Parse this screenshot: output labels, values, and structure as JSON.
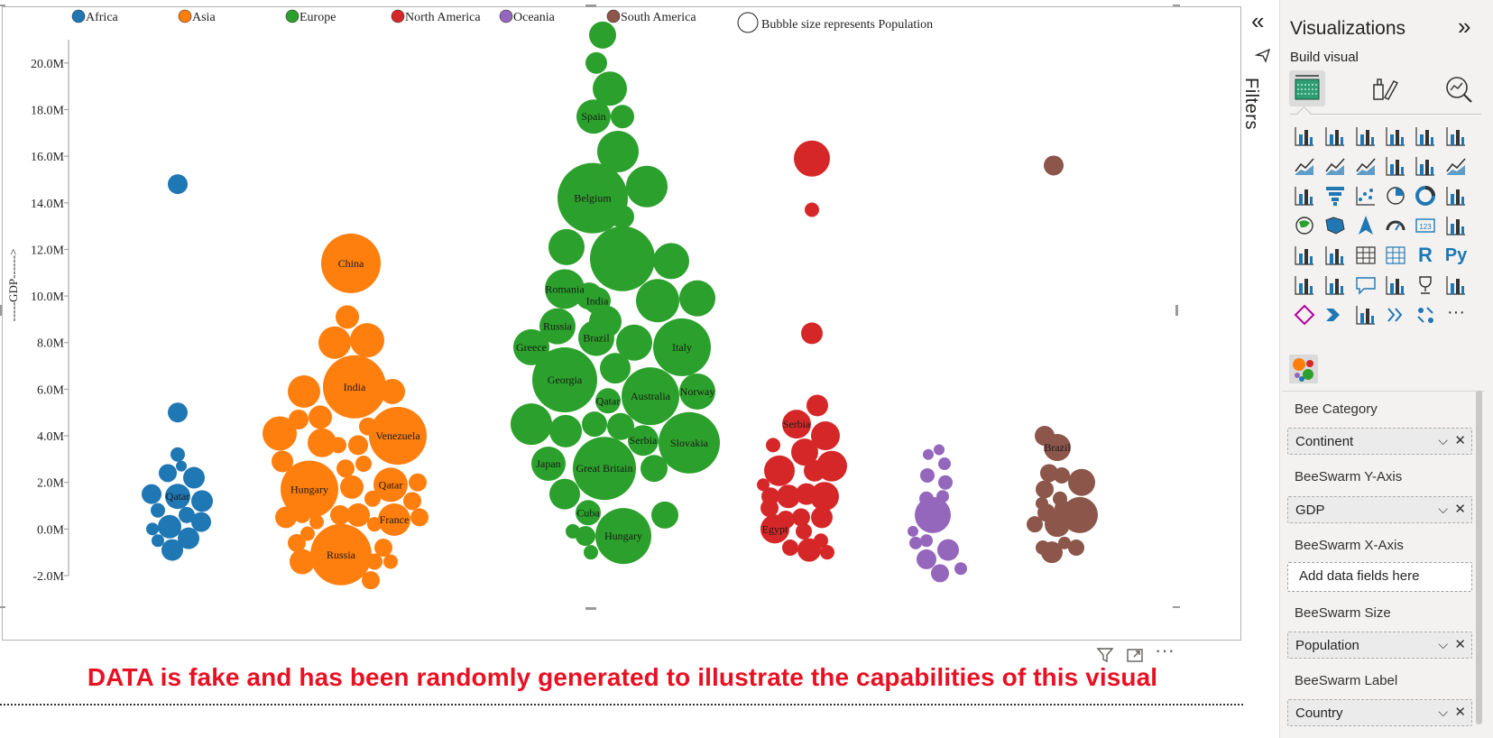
{
  "chart_data": {
    "type": "scatter",
    "subtype": "beeswarm",
    "legend": {
      "position": "top",
      "entries": [
        {
          "name": "Africa",
          "color": "#1f77b4"
        },
        {
          "name": "Asia",
          "color": "#ff7f0e"
        },
        {
          "name": "Europe",
          "color": "#2ca02c"
        },
        {
          "name": "North America",
          "color": "#d62728"
        },
        {
          "name": "Oceania",
          "color": "#9467bd"
        },
        {
          "name": "South America",
          "color": "#8c564b"
        }
      ],
      "size_note": "Bubble size represents Population"
    },
    "ylabel": "-----GDP------>",
    "ylim": [
      -2.0,
      21.0
    ],
    "yticks": [
      -2.0,
      0.0,
      2.0,
      4.0,
      6.0,
      8.0,
      10.0,
      12.0,
      14.0,
      16.0,
      18.0,
      20.0
    ],
    "ytick_labels": [
      "-2.0M",
      "0.0M",
      "2.0M",
      "4.0M",
      "6.0M",
      "8.0M",
      "10.0M",
      "12.0M",
      "14.0M",
      "16.0M",
      "18.0M",
      "20.0M"
    ],
    "series": [
      {
        "name": "Africa",
        "color": "#1f77b4",
        "points": [
          {
            "dx": 0,
            "y": 14.8,
            "r": 11
          },
          {
            "dx": 0,
            "y": 5.0,
            "r": 11
          },
          {
            "dx": 0,
            "y": 3.2,
            "r": 8
          },
          {
            "dx": -11,
            "y": 2.4,
            "r": 10
          },
          {
            "dx": 4,
            "y": 2.7,
            "r": 6
          },
          {
            "dx": 18,
            "y": 2.2,
            "r": 12
          },
          {
            "dx": -29,
            "y": 1.5,
            "r": 11
          },
          {
            "dx": 0,
            "y": 1.4,
            "r": 14,
            "label": "Qatar"
          },
          {
            "dx": 27,
            "y": 1.2,
            "r": 12
          },
          {
            "dx": -22,
            "y": 0.8,
            "r": 8
          },
          {
            "dx": -9,
            "y": 0.1,
            "r": 13
          },
          {
            "dx": 10,
            "y": 0.6,
            "r": 9
          },
          {
            "dx": 26,
            "y": 0.3,
            "r": 11
          },
          {
            "dx": -28,
            "y": 0.0,
            "r": 7
          },
          {
            "dx": 12,
            "y": -0.4,
            "r": 12
          },
          {
            "dx": -22,
            "y": -0.5,
            "r": 7
          },
          {
            "dx": -6,
            "y": -0.9,
            "r": 12
          }
        ]
      },
      {
        "name": "Asia",
        "color": "#ff7f0e",
        "points": [
          {
            "dx": -4,
            "y": 11.4,
            "r": 33,
            "label": "China"
          },
          {
            "dx": -8,
            "y": 9.1,
            "r": 13
          },
          {
            "dx": -22,
            "y": 8.0,
            "r": 18
          },
          {
            "dx": 14,
            "y": 8.1,
            "r": 19
          },
          {
            "dx": 0,
            "y": 6.1,
            "r": 35,
            "label": "India"
          },
          {
            "dx": -56,
            "y": 5.9,
            "r": 18
          },
          {
            "dx": 42,
            "y": 5.9,
            "r": 14
          },
          {
            "dx": -62,
            "y": 4.7,
            "r": 11
          },
          {
            "dx": -38,
            "y": 4.8,
            "r": 13
          },
          {
            "dx": -36,
            "y": 3.7,
            "r": 16
          },
          {
            "dx": 15,
            "y": 4.4,
            "r": 10
          },
          {
            "dx": -83,
            "y": 4.1,
            "r": 19
          },
          {
            "dx": -18,
            "y": 3.6,
            "r": 9
          },
          {
            "dx": 4,
            "y": 3.6,
            "r": 11
          },
          {
            "dx": 48,
            "y": 4.0,
            "r": 32,
            "label": "Venezuela"
          },
          {
            "dx": -80,
            "y": 2.9,
            "r": 12
          },
          {
            "dx": -50,
            "y": 1.7,
            "r": 32,
            "label": "Hungary"
          },
          {
            "dx": -10,
            "y": 2.6,
            "r": 10
          },
          {
            "dx": 10,
            "y": 2.8,
            "r": 9
          },
          {
            "dx": 40,
            "y": 1.9,
            "r": 19,
            "label": "Qatar"
          },
          {
            "dx": -3,
            "y": 1.8,
            "r": 13
          },
          {
            "dx": 70,
            "y": 2.0,
            "r": 10
          },
          {
            "dx": 64,
            "y": 1.2,
            "r": 10
          },
          {
            "dx": -16,
            "y": 0.6,
            "r": 11
          },
          {
            "dx": 4,
            "y": 0.6,
            "r": 13
          },
          {
            "dx": 20,
            "y": 1.3,
            "r": 9
          },
          {
            "dx": 44,
            "y": 0.4,
            "r": 18,
            "label": "France"
          },
          {
            "dx": -76,
            "y": 0.5,
            "r": 12
          },
          {
            "dx": -58,
            "y": 0.6,
            "r": 9
          },
          {
            "dx": 72,
            "y": 0.5,
            "r": 10
          },
          {
            "dx": -52,
            "y": -0.2,
            "r": 8
          },
          {
            "dx": -42,
            "y": 0.3,
            "r": 8
          },
          {
            "dx": 22,
            "y": 0.2,
            "r": 8
          },
          {
            "dx": -64,
            "y": -0.6,
            "r": 10
          },
          {
            "dx": -15,
            "y": -1.1,
            "r": 34,
            "label": "Russia"
          },
          {
            "dx": 32,
            "y": -0.8,
            "r": 10
          },
          {
            "dx": 22,
            "y": -1.4,
            "r": 9
          },
          {
            "dx": -58,
            "y": -1.4,
            "r": 14
          },
          {
            "dx": 18,
            "y": -2.2,
            "r": 10
          },
          {
            "dx": 40,
            "y": -1.4,
            "r": 8
          }
        ]
      },
      {
        "name": "Europe",
        "color": "#2ca02c",
        "points": [
          {
            "dx": 13,
            "y": 21.2,
            "r": 15
          },
          {
            "dx": 6,
            "y": 20.0,
            "r": 12
          },
          {
            "dx": 21,
            "y": 18.9,
            "r": 19
          },
          {
            "dx": 3,
            "y": 17.7,
            "r": 19,
            "label": "Spain"
          },
          {
            "dx": 35,
            "y": 17.7,
            "r": 13
          },
          {
            "dx": 30,
            "y": 16.2,
            "r": 23
          },
          {
            "dx": 2,
            "y": 14.2,
            "r": 39,
            "label": "Belgium"
          },
          {
            "dx": 62,
            "y": 14.7,
            "r": 23
          },
          {
            "dx": 35,
            "y": 13.4,
            "r": 13
          },
          {
            "dx": -27,
            "y": 12.1,
            "r": 20
          },
          {
            "dx": 35,
            "y": 11.6,
            "r": 36
          },
          {
            "dx": 89,
            "y": 11.5,
            "r": 20
          },
          {
            "dx": -29,
            "y": 10.3,
            "r": 22,
            "label": "Romania"
          },
          {
            "dx": -2,
            "y": 10.0,
            "r": 15
          },
          {
            "dx": 16,
            "y": 8.9,
            "r": 18
          },
          {
            "dx": 7,
            "y": 9.8,
            "r": 15,
            "label": "India"
          },
          {
            "dx": 74,
            "y": 9.8,
            "r": 24
          },
          {
            "dx": 118,
            "y": 9.9,
            "r": 20
          },
          {
            "dx": -37,
            "y": 8.7,
            "r": 20,
            "label": "Russia"
          },
          {
            "dx": -66,
            "y": 7.8,
            "r": 20,
            "label": "Greece"
          },
          {
            "dx": 6,
            "y": 8.2,
            "r": 20,
            "label": "Brazil"
          },
          {
            "dx": 48,
            "y": 8.0,
            "r": 20
          },
          {
            "dx": 101,
            "y": 7.8,
            "r": 32,
            "label": "Italy"
          },
          {
            "dx": -29,
            "y": 6.4,
            "r": 36,
            "label": "Georgia"
          },
          {
            "dx": 27,
            "y": 6.9,
            "r": 17
          },
          {
            "dx": 65,
            "y": 5.8,
            "r": 16
          },
          {
            "dx": 19,
            "y": 5.5,
            "r": 14,
            "label": "Qatar"
          },
          {
            "dx": 66,
            "y": 5.7,
            "r": 32,
            "label": "Australia"
          },
          {
            "dx": 118,
            "y": 5.9,
            "r": 20,
            "label": "Norway"
          },
          {
            "dx": -66,
            "y": 4.5,
            "r": 23
          },
          {
            "dx": -28,
            "y": 4.2,
            "r": 18
          },
          {
            "dx": 4,
            "y": 4.5,
            "r": 14
          },
          {
            "dx": 33,
            "y": 4.4,
            "r": 15
          },
          {
            "dx": 58,
            "y": 3.8,
            "r": 17,
            "label": "Serbia"
          },
          {
            "dx": 109,
            "y": 3.7,
            "r": 34,
            "label": "Slovakia"
          },
          {
            "dx": -47,
            "y": 2.8,
            "r": 19,
            "label": "Japan"
          },
          {
            "dx": 15,
            "y": 2.6,
            "r": 35,
            "label": "Great Britain"
          },
          {
            "dx": 70,
            "y": 2.6,
            "r": 15
          },
          {
            "dx": -29,
            "y": 1.5,
            "r": 17
          },
          {
            "dx": -3,
            "y": 0.7,
            "r": 14,
            "label": "Cuba"
          },
          {
            "dx": 82,
            "y": 0.6,
            "r": 15
          },
          {
            "dx": -20,
            "y": -0.1,
            "r": 8
          },
          {
            "dx": -6,
            "y": -0.3,
            "r": 11
          },
          {
            "dx": 36,
            "y": -0.3,
            "r": 31,
            "label": "Hungary"
          },
          {
            "dx": 0,
            "y": -1.0,
            "r": 8
          }
        ]
      },
      {
        "name": "North America",
        "color": "#d62728",
        "points": [
          {
            "dx": 0,
            "y": 15.9,
            "r": 20
          },
          {
            "dx": 0,
            "y": 13.7,
            "r": 8
          },
          {
            "dx": 0,
            "y": 8.4,
            "r": 12
          },
          {
            "dx": 6,
            "y": 5.3,
            "r": 12
          },
          {
            "dx": -17,
            "y": 4.5,
            "r": 16,
            "label": "Serbia"
          },
          {
            "dx": 15,
            "y": 4.0,
            "r": 16
          },
          {
            "dx": -43,
            "y": 3.6,
            "r": 8
          },
          {
            "dx": -8,
            "y": 3.3,
            "r": 15
          },
          {
            "dx": -36,
            "y": 2.5,
            "r": 17
          },
          {
            "dx": 22,
            "y": 2.7,
            "r": 17
          },
          {
            "dx": 3,
            "y": 2.5,
            "r": 12
          },
          {
            "dx": -54,
            "y": 1.9,
            "r": 7
          },
          {
            "dx": -46,
            "y": 1.4,
            "r": 10
          },
          {
            "dx": -26,
            "y": 1.4,
            "r": 13
          },
          {
            "dx": -6,
            "y": 1.5,
            "r": 12
          },
          {
            "dx": 14,
            "y": 1.4,
            "r": 16
          },
          {
            "dx": -47,
            "y": 0.9,
            "r": 10
          },
          {
            "dx": -29,
            "y": 0.4,
            "r": 10
          },
          {
            "dx": -12,
            "y": 0.5,
            "r": 10
          },
          {
            "dx": 11,
            "y": 0.5,
            "r": 12
          },
          {
            "dx": -41,
            "y": 0.0,
            "r": 16,
            "label": "Egypt"
          },
          {
            "dx": -9,
            "y": -0.1,
            "r": 9
          },
          {
            "dx": 10,
            "y": -0.5,
            "r": 8
          },
          {
            "dx": -24,
            "y": -0.8,
            "r": 9
          },
          {
            "dx": -3,
            "y": -0.9,
            "r": 13
          },
          {
            "dx": 17,
            "y": -1.0,
            "r": 8
          }
        ]
      },
      {
        "name": "Oceania",
        "color": "#9467bd",
        "points": [
          {
            "dx": -6,
            "y": 3.2,
            "r": 6
          },
          {
            "dx": 6,
            "y": 3.4,
            "r": 6
          },
          {
            "dx": 12,
            "y": 2.8,
            "r": 7
          },
          {
            "dx": -7,
            "y": 2.3,
            "r": 8
          },
          {
            "dx": 13,
            "y": 2.0,
            "r": 8
          },
          {
            "dx": -8,
            "y": 1.3,
            "r": 8
          },
          {
            "dx": 10,
            "y": 1.4,
            "r": 7
          },
          {
            "dx": -1,
            "y": 0.6,
            "r": 20
          },
          {
            "dx": -23,
            "y": -0.1,
            "r": 6
          },
          {
            "dx": -20,
            "y": -0.6,
            "r": 7
          },
          {
            "dx": -8,
            "y": -0.5,
            "r": 7
          },
          {
            "dx": 16,
            "y": -0.9,
            "r": 12
          },
          {
            "dx": -8,
            "y": -1.3,
            "r": 11
          },
          {
            "dx": 30,
            "y": -1.7,
            "r": 7
          },
          {
            "dx": 7,
            "y": -1.9,
            "r": 10
          }
        ]
      },
      {
        "name": "South America",
        "color": "#8c564b",
        "points": [
          {
            "dx": 0,
            "y": 15.6,
            "r": 11
          },
          {
            "dx": -10,
            "y": 4.0,
            "r": 11
          },
          {
            "dx": 4,
            "y": 3.5,
            "r": 15,
            "label": "Brazil"
          },
          {
            "dx": 9,
            "y": 2.3,
            "r": 9
          },
          {
            "dx": 31,
            "y": 2.0,
            "r": 15
          },
          {
            "dx": -5,
            "y": 2.4,
            "r": 10
          },
          {
            "dx": -10,
            "y": 1.7,
            "r": 10
          },
          {
            "dx": 7,
            "y": 1.3,
            "r": 8
          },
          {
            "dx": -13,
            "y": 1.1,
            "r": 7
          },
          {
            "dx": 29,
            "y": 0.6,
            "r": 20
          },
          {
            "dx": -8,
            "y": 0.7,
            "r": 10
          },
          {
            "dx": 10,
            "y": 0.9,
            "r": 9
          },
          {
            "dx": -21,
            "y": 0.2,
            "r": 9
          },
          {
            "dx": 4,
            "y": 0.2,
            "r": 14
          },
          {
            "dx": 12,
            "y": -0.6,
            "r": 7
          },
          {
            "dx": -12,
            "y": -0.8,
            "r": 8
          },
          {
            "dx": 25,
            "y": -0.8,
            "r": 9
          },
          {
            "dx": -2,
            "y": -1.0,
            "r": 12
          }
        ]
      }
    ]
  },
  "disclaimer": "DATA is fake and has been randomly generated to illustrate the capabilities of this visual",
  "visual_header": {
    "icons": [
      "filter-icon",
      "focus-mode-icon",
      "more-options-icon"
    ],
    "more_label": "···"
  },
  "filters_pane": {
    "label": "Filters",
    "collapse_glyph": "«"
  },
  "viz_pane": {
    "title": "Visualizations",
    "expand_glyph": "»",
    "subtitle": "Build visual",
    "tabs": [
      "build-visual-tab",
      "format-visual-tab",
      "analytics-tab"
    ],
    "visual_rows": [
      [
        "stacked-bar",
        "stacked-column",
        "clustered-bar",
        "clustered-column",
        "100-stacked-bar",
        "100-stacked-column"
      ],
      [
        "line",
        "area",
        "stacked-area",
        "line-clustered-column",
        "line-stacked-column",
        "ribbon"
      ],
      [
        "waterfall",
        "funnel",
        "scatter",
        "pie",
        "donut",
        "treemap"
      ],
      [
        "map",
        "filled-map",
        "azure-map",
        "gauge",
        "card",
        "multi-row-card"
      ],
      [
        "kpi",
        "slicer",
        "table",
        "matrix",
        "r-visual",
        "python-visual"
      ],
      [
        "key-influencers",
        "decomposition-tree",
        "qa",
        "smart-narrative",
        "metrics",
        "paginated-report"
      ],
      [
        "power-apps",
        "power-automate",
        "get-more-visuals",
        "chevron",
        "custom-visual",
        "more-visuals"
      ]
    ],
    "r_label": "R",
    "py_label": "Py",
    "card_label": "123",
    "more_label": "···",
    "fields": [
      {
        "label": "Bee Category",
        "value": "Continent"
      },
      {
        "label": "BeeSwarm Y-Axis",
        "value": "GDP"
      },
      {
        "label": "BeeSwarm X-Axis",
        "value": "",
        "placeholder": "Add data fields here"
      },
      {
        "label": "BeeSwarm Size",
        "value": "Population"
      },
      {
        "label": "BeeSwarm Label",
        "value": "Country"
      }
    ],
    "chevron_glyph": "⌵",
    "remove_glyph": "✕"
  },
  "colors": {
    "accent_blue": "#0078d4",
    "disclaimer_red": "#e81123"
  }
}
